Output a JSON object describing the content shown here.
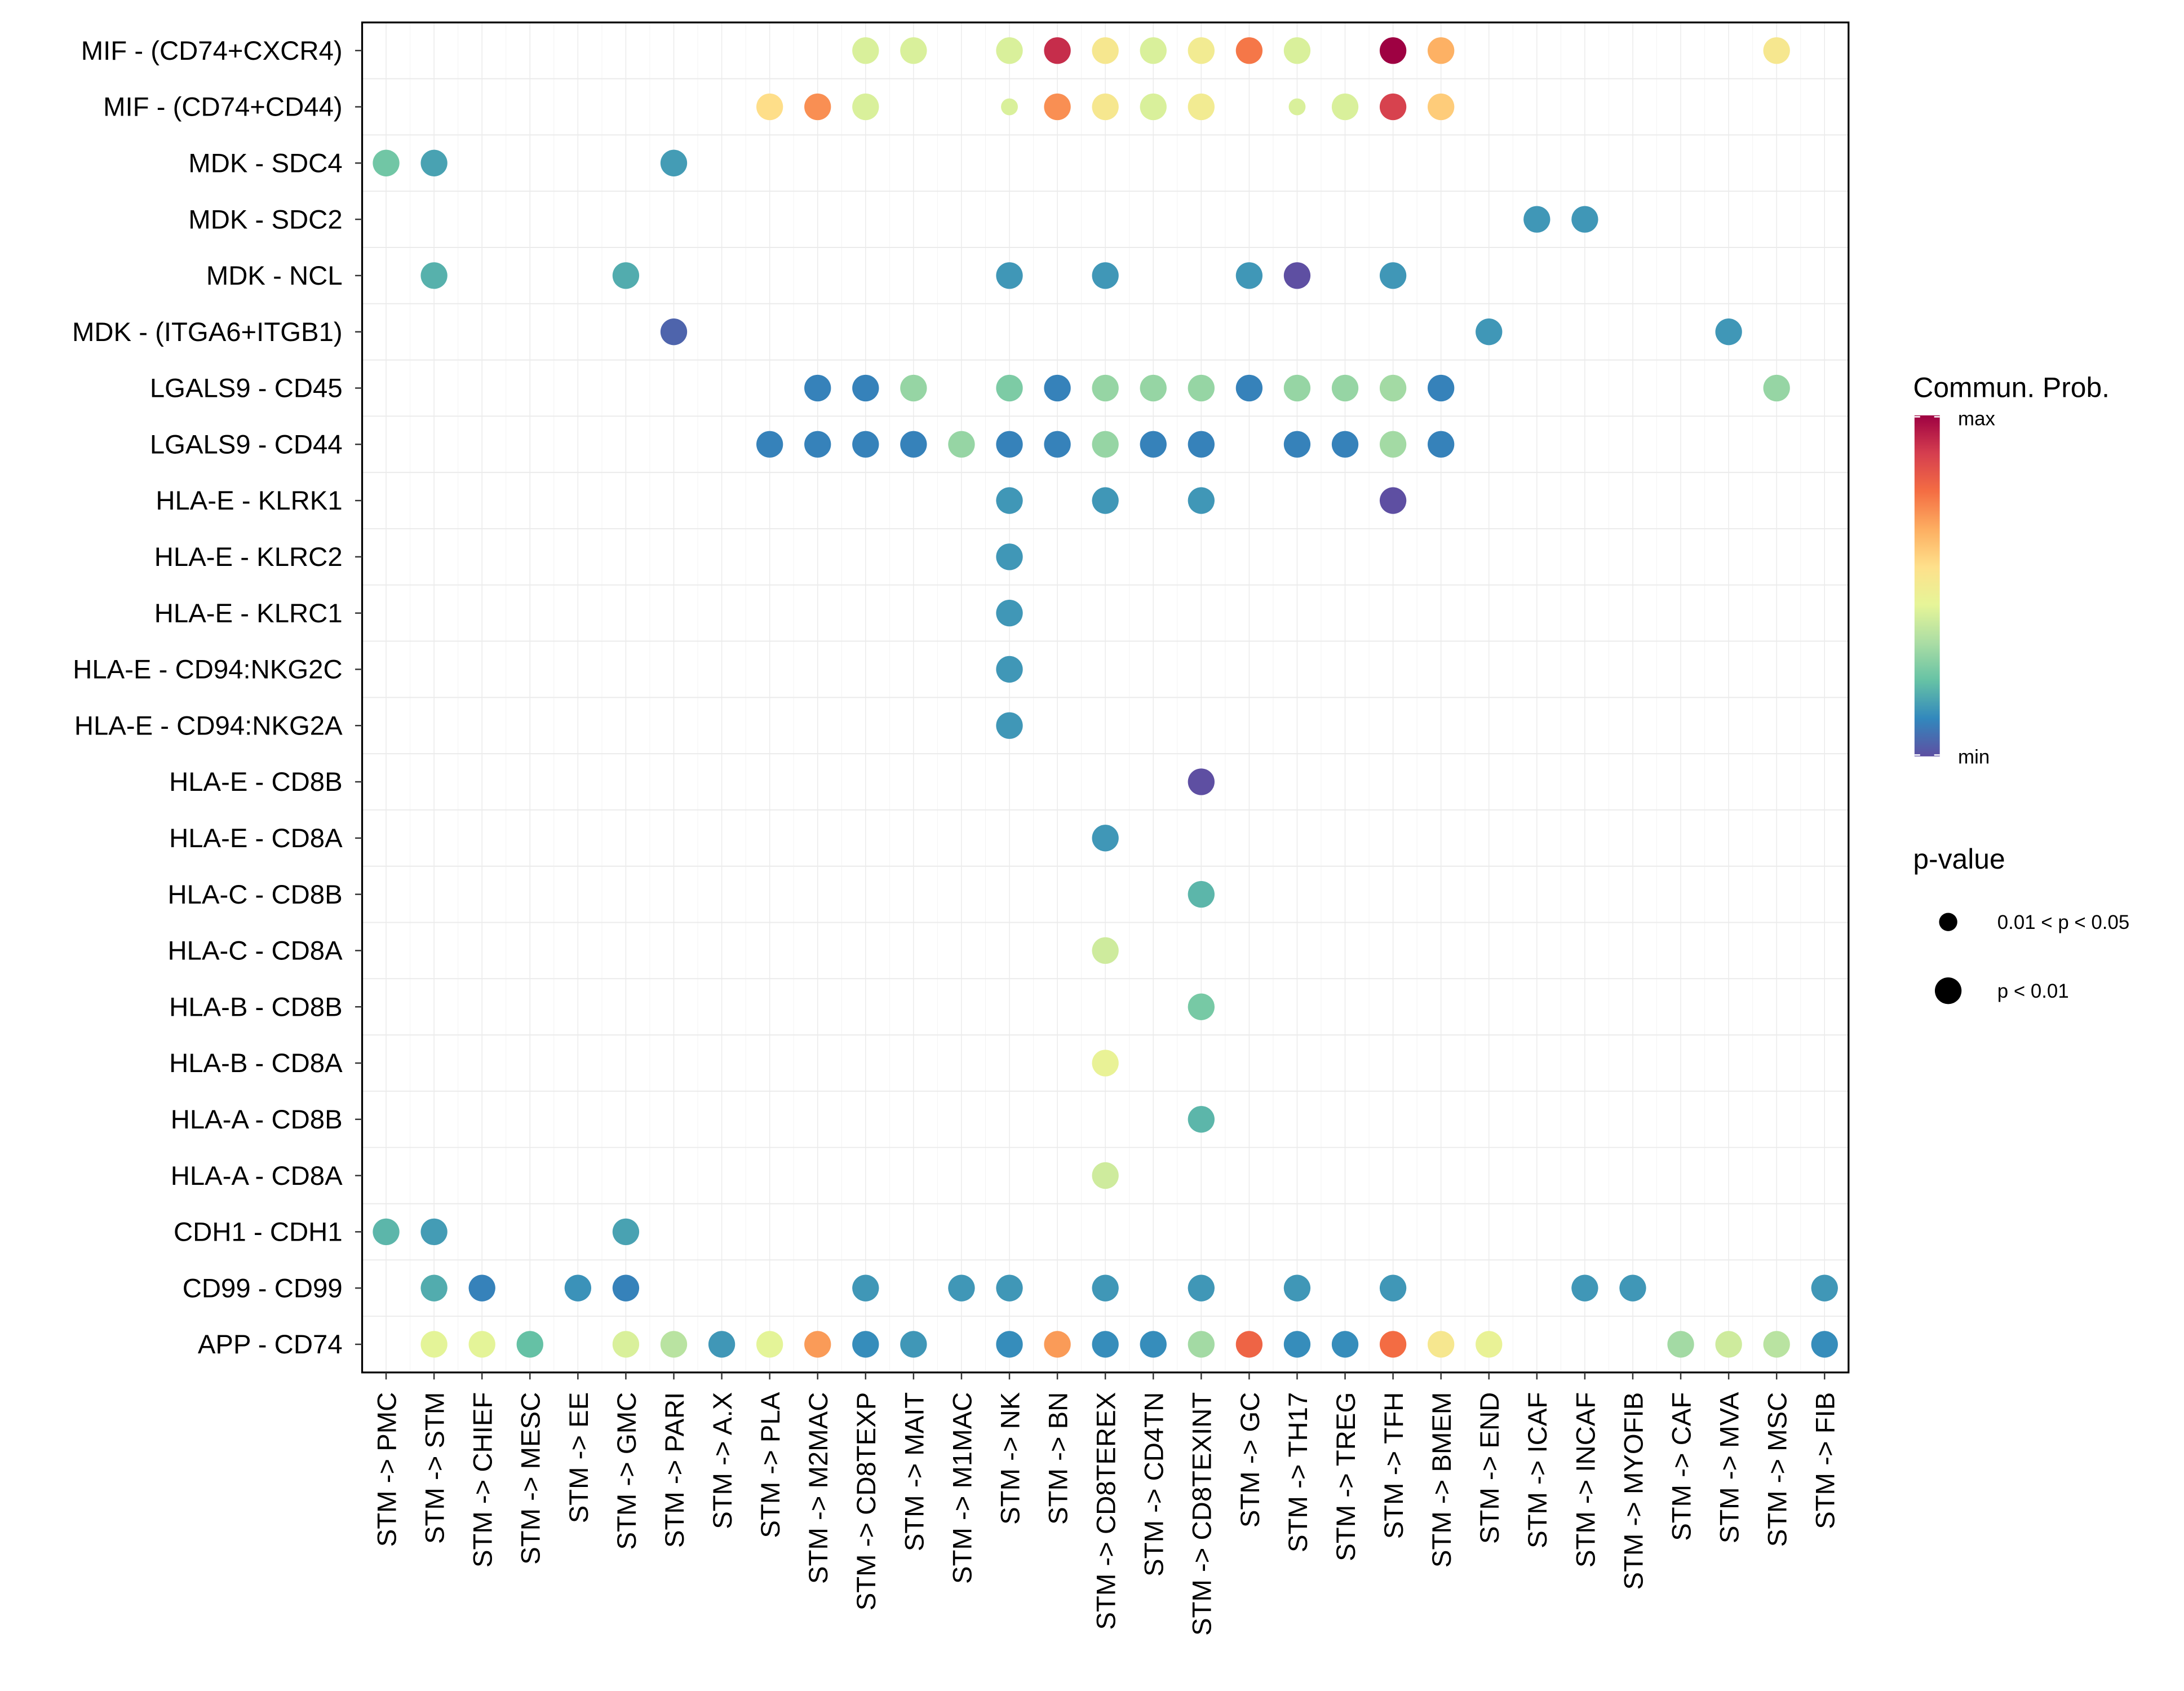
{
  "chart_data": {
    "type": "scatter",
    "subtype": "dot-plot",
    "title": "",
    "xlabel": "",
    "ylabel": "",
    "grid": true,
    "x_categories": [
      "STM -> PMC",
      "STM -> STM",
      "STM -> CHIEF",
      "STM -> MESC",
      "STM -> EE",
      "STM -> GMC",
      "STM -> PARI",
      "STM -> A.X",
      "STM -> PLA",
      "STM -> M2MAC",
      "STM -> CD8TEXP",
      "STM -> MAIT",
      "STM -> M1MAC",
      "STM -> NK",
      "STM -> BN",
      "STM -> CD8TEREX",
      "STM -> CD4TN",
      "STM -> CD8TEXINT",
      "STM -> GC",
      "STM -> TH17",
      "STM -> TREG",
      "STM -> TFH",
      "STM -> BMEM",
      "STM -> END",
      "STM -> ICAF",
      "STM -> INCAF",
      "STM -> MYOFIB",
      "STM -> CAF",
      "STM -> MVA",
      "STM -> MSC",
      "STM -> FIB"
    ],
    "y_categories": [
      "MIF - (CD74+CXCR4)",
      "MIF - (CD74+CD44)",
      "MDK - SDC4",
      "MDK - SDC2",
      "MDK - NCL",
      "MDK - (ITGA6+ITGB1)",
      "LGALS9 - CD45",
      "LGALS9 - CD44",
      "HLA-E - KLRK1",
      "HLA-E - KLRC2",
      "HLA-E - KLRC1",
      "HLA-E - CD94:NKG2C",
      "HLA-E - CD94:NKG2A",
      "HLA-E - CD8B",
      "HLA-E - CD8A",
      "HLA-C - CD8B",
      "HLA-C - CD8A",
      "HLA-B - CD8B",
      "HLA-B - CD8A",
      "HLA-A - CD8B",
      "HLA-A - CD8A",
      "CDH1 - CDH1",
      "CD99 - CD99",
      "APP - CD74"
    ],
    "value_scale": "relative communication probability (0 = min, 1 = max)",
    "points": [
      {
        "y": "MIF - (CD74+CXCR4)",
        "x": "STM -> CD8TEXP",
        "prob": 0.42,
        "p": "p < 0.01"
      },
      {
        "y": "MIF - (CD74+CXCR4)",
        "x": "STM -> MAIT",
        "prob": 0.42,
        "p": "p < 0.01"
      },
      {
        "y": "MIF - (CD74+CXCR4)",
        "x": "STM -> NK",
        "prob": 0.42,
        "p": "p < 0.01"
      },
      {
        "y": "MIF - (CD74+CXCR4)",
        "x": "STM -> BN",
        "prob": 0.92,
        "p": "p < 0.01"
      },
      {
        "y": "MIF - (CD74+CXCR4)",
        "x": "STM -> CD8TEREX",
        "prob": 0.52,
        "p": "p < 0.01"
      },
      {
        "y": "MIF - (CD74+CXCR4)",
        "x": "STM -> CD4TN",
        "prob": 0.42,
        "p": "p < 0.01"
      },
      {
        "y": "MIF - (CD74+CXCR4)",
        "x": "STM -> CD8TEXINT",
        "prob": 0.5,
        "p": "p < 0.01"
      },
      {
        "y": "MIF - (CD74+CXCR4)",
        "x": "STM -> GC",
        "prob": 0.76,
        "p": "p < 0.01"
      },
      {
        "y": "MIF - (CD74+CXCR4)",
        "x": "STM -> TH17",
        "prob": 0.42,
        "p": "p < 0.01"
      },
      {
        "y": "MIF - (CD74+CXCR4)",
        "x": "STM -> TFH",
        "prob": 1.0,
        "p": "p < 0.01"
      },
      {
        "y": "MIF - (CD74+CXCR4)",
        "x": "STM -> BMEM",
        "prob": 0.66,
        "p": "p < 0.01"
      },
      {
        "y": "MIF - (CD74+CXCR4)",
        "x": "STM -> MSC",
        "prob": 0.52,
        "p": "p < 0.01"
      },
      {
        "y": "MIF - (CD74+CD44)",
        "x": "STM -> PLA",
        "prob": 0.56,
        "p": "p < 0.01"
      },
      {
        "y": "MIF - (CD74+CD44)",
        "x": "STM -> M2MAC",
        "prob": 0.72,
        "p": "p < 0.01"
      },
      {
        "y": "MIF - (CD74+CD44)",
        "x": "STM -> CD8TEXP",
        "prob": 0.42,
        "p": "p < 0.01"
      },
      {
        "y": "MIF - (CD74+CD44)",
        "x": "STM -> NK",
        "prob": 0.42,
        "p": "0.01 < p < 0.05"
      },
      {
        "y": "MIF - (CD74+CD44)",
        "x": "STM -> BN",
        "prob": 0.72,
        "p": "p < 0.01"
      },
      {
        "y": "MIF - (CD74+CD44)",
        "x": "STM -> CD8TEREX",
        "prob": 0.52,
        "p": "p < 0.01"
      },
      {
        "y": "MIF - (CD74+CD44)",
        "x": "STM -> CD4TN",
        "prob": 0.42,
        "p": "p < 0.01"
      },
      {
        "y": "MIF - (CD74+CD44)",
        "x": "STM -> CD8TEXINT",
        "prob": 0.5,
        "p": "p < 0.01"
      },
      {
        "y": "MIF - (CD74+CD44)",
        "x": "STM -> TH17",
        "prob": 0.42,
        "p": "0.01 < p < 0.05"
      },
      {
        "y": "MIF - (CD74+CD44)",
        "x": "STM -> TREG",
        "prob": 0.42,
        "p": "p < 0.01"
      },
      {
        "y": "MIF - (CD74+CD44)",
        "x": "STM -> TFH",
        "prob": 0.88,
        "p": "p < 0.01"
      },
      {
        "y": "MIF - (CD74+CD44)",
        "x": "STM -> BMEM",
        "prob": 0.6,
        "p": "p < 0.01"
      },
      {
        "y": "MDK - SDC4",
        "x": "STM -> PMC",
        "prob": 0.24,
        "p": "p < 0.01"
      },
      {
        "y": "MDK - SDC4",
        "x": "STM -> STM",
        "prob": 0.16,
        "p": "p < 0.01"
      },
      {
        "y": "MDK - SDC4",
        "x": "STM -> PARI",
        "prob": 0.15,
        "p": "p < 0.01"
      },
      {
        "y": "MDK - SDC2",
        "x": "STM -> ICAF",
        "prob": 0.14,
        "p": "p < 0.01"
      },
      {
        "y": "MDK - SDC2",
        "x": "STM -> INCAF",
        "prob": 0.14,
        "p": "p < 0.01"
      },
      {
        "y": "MDK - NCL",
        "x": "STM -> STM",
        "prob": 0.19,
        "p": "p < 0.01"
      },
      {
        "y": "MDK - NCL",
        "x": "STM -> GMC",
        "prob": 0.18,
        "p": "p < 0.01"
      },
      {
        "y": "MDK - NCL",
        "x": "STM -> NK",
        "prob": 0.14,
        "p": "p < 0.01"
      },
      {
        "y": "MDK - NCL",
        "x": "STM -> CD8TEREX",
        "prob": 0.14,
        "p": "p < 0.01"
      },
      {
        "y": "MDK - NCL",
        "x": "STM -> GC",
        "prob": 0.14,
        "p": "p < 0.01"
      },
      {
        "y": "MDK - NCL",
        "x": "STM -> TH17",
        "prob": 0.0,
        "p": "p < 0.01"
      },
      {
        "y": "MDK - NCL",
        "x": "STM -> TFH",
        "prob": 0.14,
        "p": "p < 0.01"
      },
      {
        "y": "MDK - (ITGA6+ITGB1)",
        "x": "STM -> PARI",
        "prob": 0.04,
        "p": "p < 0.01"
      },
      {
        "y": "MDK - (ITGA6+ITGB1)",
        "x": "STM -> END",
        "prob": 0.14,
        "p": "p < 0.01"
      },
      {
        "y": "MDK - (ITGA6+ITGB1)",
        "x": "STM -> MVA",
        "prob": 0.14,
        "p": "p < 0.01"
      },
      {
        "y": "LGALS9 - CD45",
        "x": "STM -> M2MAC",
        "prob": 0.1,
        "p": "p < 0.01"
      },
      {
        "y": "LGALS9 - CD45",
        "x": "STM -> CD8TEXP",
        "prob": 0.1,
        "p": "p < 0.01"
      },
      {
        "y": "LGALS9 - CD45",
        "x": "STM -> MAIT",
        "prob": 0.3,
        "p": "p < 0.01"
      },
      {
        "y": "LGALS9 - CD45",
        "x": "STM -> NK",
        "prob": 0.26,
        "p": "p < 0.01"
      },
      {
        "y": "LGALS9 - CD45",
        "x": "STM -> BN",
        "prob": 0.1,
        "p": "p < 0.01"
      },
      {
        "y": "LGALS9 - CD45",
        "x": "STM -> CD8TEREX",
        "prob": 0.3,
        "p": "p < 0.01"
      },
      {
        "y": "LGALS9 - CD45",
        "x": "STM -> CD4TN",
        "prob": 0.3,
        "p": "p < 0.01"
      },
      {
        "y": "LGALS9 - CD45",
        "x": "STM -> CD8TEXINT",
        "prob": 0.3,
        "p": "p < 0.01"
      },
      {
        "y": "LGALS9 - CD45",
        "x": "STM -> GC",
        "prob": 0.1,
        "p": "p < 0.01"
      },
      {
        "y": "LGALS9 - CD45",
        "x": "STM -> TH17",
        "prob": 0.3,
        "p": "p < 0.01"
      },
      {
        "y": "LGALS9 - CD45",
        "x": "STM -> TREG",
        "prob": 0.3,
        "p": "p < 0.01"
      },
      {
        "y": "LGALS9 - CD45",
        "x": "STM -> TFH",
        "prob": 0.32,
        "p": "p < 0.01"
      },
      {
        "y": "LGALS9 - CD45",
        "x": "STM -> BMEM",
        "prob": 0.1,
        "p": "p < 0.01"
      },
      {
        "y": "LGALS9 - CD45",
        "x": "STM -> MSC",
        "prob": 0.3,
        "p": "p < 0.01"
      },
      {
        "y": "LGALS9 - CD44",
        "x": "STM -> PLA",
        "prob": 0.1,
        "p": "p < 0.01"
      },
      {
        "y": "LGALS9 - CD44",
        "x": "STM -> M2MAC",
        "prob": 0.1,
        "p": "p < 0.01"
      },
      {
        "y": "LGALS9 - CD44",
        "x": "STM -> CD8TEXP",
        "prob": 0.1,
        "p": "p < 0.01"
      },
      {
        "y": "LGALS9 - CD44",
        "x": "STM -> MAIT",
        "prob": 0.1,
        "p": "p < 0.01"
      },
      {
        "y": "LGALS9 - CD44",
        "x": "STM -> M1MAC",
        "prob": 0.3,
        "p": "p < 0.01"
      },
      {
        "y": "LGALS9 - CD44",
        "x": "STM -> NK",
        "prob": 0.1,
        "p": "p < 0.01"
      },
      {
        "y": "LGALS9 - CD44",
        "x": "STM -> BN",
        "prob": 0.1,
        "p": "p < 0.01"
      },
      {
        "y": "LGALS9 - CD44",
        "x": "STM -> CD8TEREX",
        "prob": 0.3,
        "p": "p < 0.01"
      },
      {
        "y": "LGALS9 - CD44",
        "x": "STM -> CD4TN",
        "prob": 0.1,
        "p": "p < 0.01"
      },
      {
        "y": "LGALS9 - CD44",
        "x": "STM -> CD8TEXINT",
        "prob": 0.1,
        "p": "p < 0.01"
      },
      {
        "y": "LGALS9 - CD44",
        "x": "STM -> TH17",
        "prob": 0.1,
        "p": "p < 0.01"
      },
      {
        "y": "LGALS9 - CD44",
        "x": "STM -> TREG",
        "prob": 0.1,
        "p": "p < 0.01"
      },
      {
        "y": "LGALS9 - CD44",
        "x": "STM -> TFH",
        "prob": 0.32,
        "p": "p < 0.01"
      },
      {
        "y": "LGALS9 - CD44",
        "x": "STM -> BMEM",
        "prob": 0.1,
        "p": "p < 0.01"
      },
      {
        "y": "HLA-E - KLRK1",
        "x": "STM -> NK",
        "prob": 0.14,
        "p": "p < 0.01"
      },
      {
        "y": "HLA-E - KLRK1",
        "x": "STM -> CD8TEREX",
        "prob": 0.14,
        "p": "p < 0.01"
      },
      {
        "y": "HLA-E - KLRK1",
        "x": "STM -> CD8TEXINT",
        "prob": 0.14,
        "p": "p < 0.01"
      },
      {
        "y": "HLA-E - KLRK1",
        "x": "STM -> TFH",
        "prob": 0.0,
        "p": "p < 0.01"
      },
      {
        "y": "HLA-E - KLRC2",
        "x": "STM -> NK",
        "prob": 0.14,
        "p": "p < 0.01"
      },
      {
        "y": "HLA-E - KLRC1",
        "x": "STM -> NK",
        "prob": 0.14,
        "p": "p < 0.01"
      },
      {
        "y": "HLA-E - CD94:NKG2C",
        "x": "STM -> NK",
        "prob": 0.14,
        "p": "p < 0.01"
      },
      {
        "y": "HLA-E - CD94:NKG2A",
        "x": "STM -> NK",
        "prob": 0.14,
        "p": "p < 0.01"
      },
      {
        "y": "HLA-E - CD8B",
        "x": "STM -> CD8TEXINT",
        "prob": 0.0,
        "p": "p < 0.01"
      },
      {
        "y": "HLA-E - CD8A",
        "x": "STM -> CD8TEREX",
        "prob": 0.14,
        "p": "p < 0.01"
      },
      {
        "y": "HLA-C - CD8B",
        "x": "STM -> CD8TEXINT",
        "prob": 0.2,
        "p": "p < 0.01"
      },
      {
        "y": "HLA-C - CD8A",
        "x": "STM -> CD8TEREX",
        "prob": 0.4,
        "p": "p < 0.01"
      },
      {
        "y": "HLA-B - CD8B",
        "x": "STM -> CD8TEXINT",
        "prob": 0.25,
        "p": "p < 0.01"
      },
      {
        "y": "HLA-B - CD8A",
        "x": "STM -> CD8TEREX",
        "prob": 0.46,
        "p": "p < 0.01"
      },
      {
        "y": "HLA-A - CD8B",
        "x": "STM -> CD8TEXINT",
        "prob": 0.2,
        "p": "p < 0.01"
      },
      {
        "y": "HLA-A - CD8A",
        "x": "STM -> CD8TEREX",
        "prob": 0.4,
        "p": "p < 0.01"
      },
      {
        "y": "CDH1 - CDH1",
        "x": "STM -> PMC",
        "prob": 0.2,
        "p": "p < 0.01"
      },
      {
        "y": "CDH1 - CDH1",
        "x": "STM -> STM",
        "prob": 0.15,
        "p": "p < 0.01"
      },
      {
        "y": "CDH1 - CDH1",
        "x": "STM -> GMC",
        "prob": 0.16,
        "p": "p < 0.01"
      },
      {
        "y": "CD99 - CD99",
        "x": "STM -> STM",
        "prob": 0.18,
        "p": "p < 0.01"
      },
      {
        "y": "CD99 - CD99",
        "x": "STM -> CHIEF",
        "prob": 0.1,
        "p": "p < 0.01"
      },
      {
        "y": "CD99 - CD99",
        "x": "STM -> EE",
        "prob": 0.13,
        "p": "p < 0.01"
      },
      {
        "y": "CD99 - CD99",
        "x": "STM -> GMC",
        "prob": 0.1,
        "p": "p < 0.01"
      },
      {
        "y": "CD99 - CD99",
        "x": "STM -> CD8TEXP",
        "prob": 0.14,
        "p": "p < 0.01"
      },
      {
        "y": "CD99 - CD99",
        "x": "STM -> M1MAC",
        "prob": 0.14,
        "p": "p < 0.01"
      },
      {
        "y": "CD99 - CD99",
        "x": "STM -> NK",
        "prob": 0.14,
        "p": "p < 0.01"
      },
      {
        "y": "CD99 - CD99",
        "x": "STM -> CD8TEREX",
        "prob": 0.14,
        "p": "p < 0.01"
      },
      {
        "y": "CD99 - CD99",
        "x": "STM -> CD8TEXINT",
        "prob": 0.14,
        "p": "p < 0.01"
      },
      {
        "y": "CD99 - CD99",
        "x": "STM -> TH17",
        "prob": 0.14,
        "p": "p < 0.01"
      },
      {
        "y": "CD99 - CD99",
        "x": "STM -> TFH",
        "prob": 0.14,
        "p": "p < 0.01"
      },
      {
        "y": "CD99 - CD99",
        "x": "STM -> INCAF",
        "prob": 0.14,
        "p": "p < 0.01"
      },
      {
        "y": "CD99 - CD99",
        "x": "STM -> MYOFIB",
        "prob": 0.14,
        "p": "p < 0.01"
      },
      {
        "y": "CD99 - CD99",
        "x": "STM -> FIB",
        "prob": 0.14,
        "p": "p < 0.01"
      },
      {
        "y": "APP - CD74",
        "x": "STM -> STM",
        "prob": 0.44,
        "p": "p < 0.01"
      },
      {
        "y": "APP - CD74",
        "x": "STM -> CHIEF",
        "prob": 0.44,
        "p": "p < 0.01"
      },
      {
        "y": "APP - CD74",
        "x": "STM -> MESC",
        "prob": 0.22,
        "p": "p < 0.01"
      },
      {
        "y": "APP - CD74",
        "x": "STM -> GMC",
        "prob": 0.42,
        "p": "p < 0.01"
      },
      {
        "y": "APP - CD74",
        "x": "STM -> PARI",
        "prob": 0.36,
        "p": "p < 0.01"
      },
      {
        "y": "APP - CD74",
        "x": "STM -> A.X",
        "prob": 0.14,
        "p": "p < 0.01"
      },
      {
        "y": "APP - CD74",
        "x": "STM -> PLA",
        "prob": 0.44,
        "p": "p < 0.01"
      },
      {
        "y": "APP - CD74",
        "x": "STM -> M2MAC",
        "prob": 0.7,
        "p": "p < 0.01"
      },
      {
        "y": "APP - CD74",
        "x": "STM -> CD8TEXP",
        "prob": 0.12,
        "p": "p < 0.01"
      },
      {
        "y": "APP - CD74",
        "x": "STM -> MAIT",
        "prob": 0.14,
        "p": "p < 0.01"
      },
      {
        "y": "APP - CD74",
        "x": "STM -> NK",
        "prob": 0.12,
        "p": "p < 0.01"
      },
      {
        "y": "APP - CD74",
        "x": "STM -> BN",
        "prob": 0.7,
        "p": "p < 0.01"
      },
      {
        "y": "APP - CD74",
        "x": "STM -> CD8TEREX",
        "prob": 0.12,
        "p": "p < 0.01"
      },
      {
        "y": "APP - CD74",
        "x": "STM -> CD4TN",
        "prob": 0.12,
        "p": "p < 0.01"
      },
      {
        "y": "APP - CD74",
        "x": "STM -> CD8TEXINT",
        "prob": 0.32,
        "p": "p < 0.01"
      },
      {
        "y": "APP - CD74",
        "x": "STM -> GC",
        "prob": 0.8,
        "p": "p < 0.01"
      },
      {
        "y": "APP - CD74",
        "x": "STM -> TH17",
        "prob": 0.12,
        "p": "p < 0.01"
      },
      {
        "y": "APP - CD74",
        "x": "STM -> TREG",
        "prob": 0.12,
        "p": "p < 0.01"
      },
      {
        "y": "APP - CD74",
        "x": "STM -> TFH",
        "prob": 0.78,
        "p": "p < 0.01"
      },
      {
        "y": "APP - CD74",
        "x": "STM -> BMEM",
        "prob": 0.52,
        "p": "p < 0.01"
      },
      {
        "y": "APP - CD74",
        "x": "STM -> END",
        "prob": 0.46,
        "p": "p < 0.01"
      },
      {
        "y": "APP - CD74",
        "x": "STM -> CAF",
        "prob": 0.32,
        "p": "p < 0.01"
      },
      {
        "y": "APP - CD74",
        "x": "STM -> MVA",
        "prob": 0.4,
        "p": "p < 0.01"
      },
      {
        "y": "APP - CD74",
        "x": "STM -> MSC",
        "prob": 0.36,
        "p": "p < 0.01"
      },
      {
        "y": "APP - CD74",
        "x": "STM -> FIB",
        "prob": 0.12,
        "p": "p < 0.01"
      }
    ],
    "color_legend": {
      "title": "Commun. Prob.",
      "max_label": "max",
      "min_label": "min",
      "palette": [
        "#5E4FA2",
        "#3288BD",
        "#66C2A5",
        "#ABDDA4",
        "#E6F598",
        "#FEE08B",
        "#FDAE61",
        "#F46D43",
        "#D53E4F",
        "#9E0142"
      ],
      "placement": "right"
    },
    "size_legend": {
      "title": "p-value",
      "items": [
        {
          "label": "0.01 < p < 0.05",
          "size": "small"
        },
        {
          "label": "p < 0.01",
          "size": "large"
        }
      ],
      "placement": "right"
    }
  }
}
